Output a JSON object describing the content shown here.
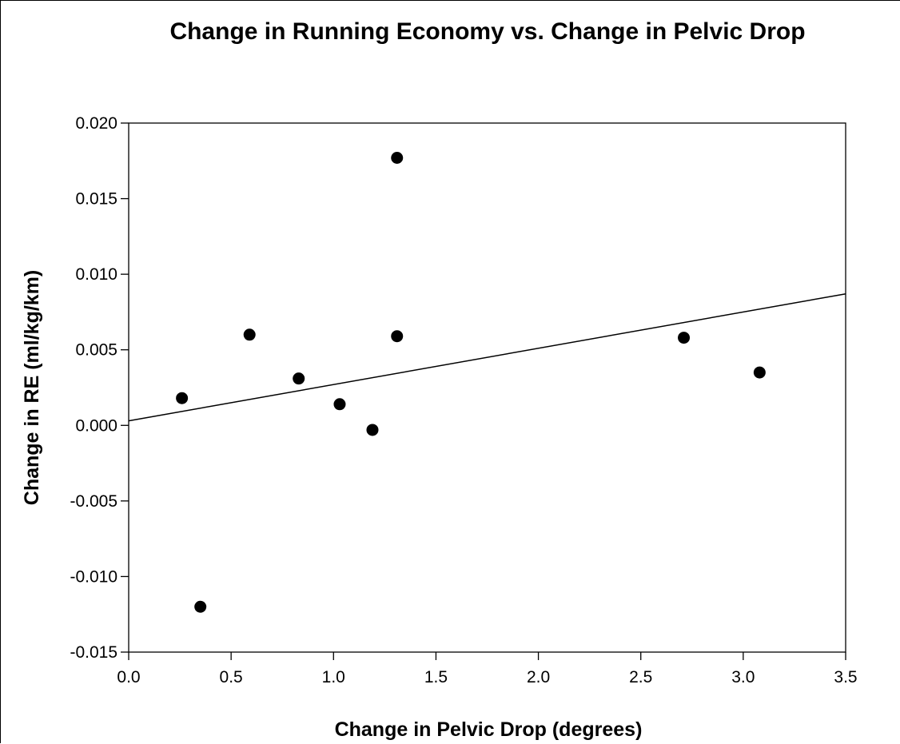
{
  "chart_data": {
    "type": "scatter",
    "title": "Change in Running Economy vs. Change in Pelvic Drop",
    "xlabel": "Change in Pelvic Drop (degrees)",
    "ylabel": "Change in RE (ml/kg/km)",
    "xlim": [
      0.0,
      3.5
    ],
    "ylim": [
      -0.015,
      0.02
    ],
    "x_ticks": [
      "0.0",
      "0.5",
      "1.0",
      "1.5",
      "2.0",
      "2.5",
      "3.0",
      "3.5"
    ],
    "y_ticks": [
      "0.020",
      "0.015",
      "0.010",
      "0.005",
      "0.000",
      "-0.005",
      "-0.010",
      "-0.015"
    ],
    "grid": false,
    "series": [
      {
        "points": [
          {
            "x": 0.26,
            "y": 0.0018
          },
          {
            "x": 0.35,
            "y": -0.012
          },
          {
            "x": 0.59,
            "y": 0.006
          },
          {
            "x": 0.83,
            "y": 0.0031
          },
          {
            "x": 1.03,
            "y": 0.0014
          },
          {
            "x": 1.19,
            "y": -0.0003
          },
          {
            "x": 1.31,
            "y": 0.0059
          },
          {
            "x": 1.31,
            "y": 0.0177
          },
          {
            "x": 2.71,
            "y": 0.0058
          },
          {
            "x": 3.08,
            "y": 0.0035
          }
        ]
      }
    ],
    "trendline": {
      "type": "linear",
      "start": {
        "x": 0.0,
        "y": 0.0003
      },
      "end": {
        "x": 3.5,
        "y": 0.0087
      }
    }
  }
}
